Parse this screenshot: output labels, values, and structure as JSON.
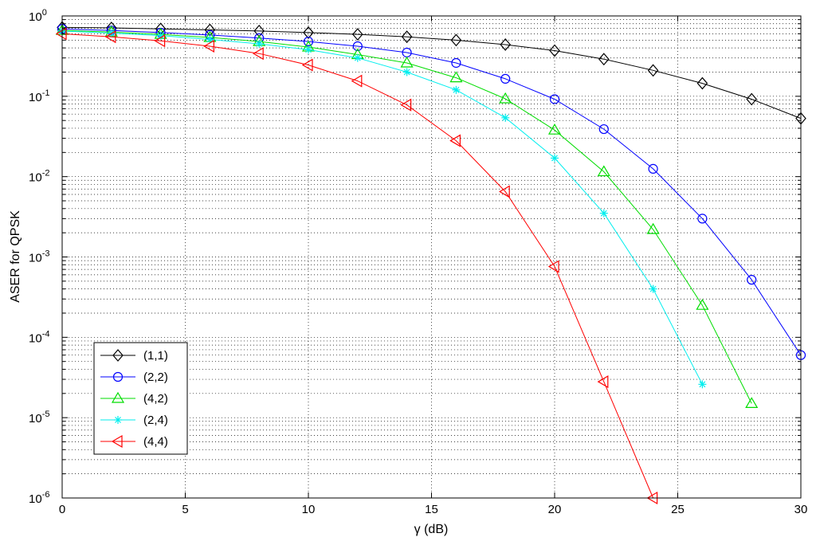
{
  "chart_data": {
    "type": "line",
    "xlabel": "γ (dB)",
    "ylabel": "ASER for QPSK",
    "xlim": [
      0,
      30
    ],
    "ylim": [
      1e-06,
      1
    ],
    "yscale": "log",
    "grid": true,
    "legend_position": "bottom-left",
    "x_ticks": [
      "0",
      "5",
      "10",
      "15",
      "20",
      "25",
      "30"
    ],
    "y_ticks": [
      {
        "base": "10",
        "exp": "0"
      },
      {
        "base": "10",
        "exp": "-1"
      },
      {
        "base": "10",
        "exp": "-2"
      },
      {
        "base": "10",
        "exp": "-3"
      },
      {
        "base": "10",
        "exp": "-4"
      },
      {
        "base": "10",
        "exp": "-5"
      },
      {
        "base": "10",
        "exp": "-6"
      }
    ],
    "series": [
      {
        "name": "(1,1)",
        "color": "#000000",
        "marker": "diamond",
        "x": [
          0,
          2,
          4,
          6,
          8,
          10,
          12,
          14,
          16,
          18,
          20,
          22,
          24,
          26,
          28,
          30
        ],
        "y": [
          0.72,
          0.71,
          0.69,
          0.67,
          0.65,
          0.62,
          0.59,
          0.55,
          0.5,
          0.44,
          0.37,
          0.29,
          0.21,
          0.145,
          0.092,
          0.053
        ]
      },
      {
        "name": "(2,2)",
        "color": "#0000ff",
        "marker": "circle",
        "x": [
          0,
          2,
          4,
          6,
          8,
          10,
          12,
          14,
          16,
          18,
          20,
          22,
          24,
          26,
          28,
          30
        ],
        "y": [
          0.69,
          0.66,
          0.62,
          0.58,
          0.53,
          0.48,
          0.42,
          0.35,
          0.26,
          0.165,
          0.092,
          0.039,
          0.0125,
          0.003,
          0.00052,
          6e-05
        ]
      },
      {
        "name": "(4,2)",
        "color": "#00dd00",
        "marker": "triangle-up",
        "x": [
          0,
          2,
          4,
          6,
          8,
          10,
          12,
          14,
          16,
          18,
          20,
          22,
          24,
          26,
          28
        ],
        "y": [
          0.66,
          0.63,
          0.59,
          0.54,
          0.48,
          0.41,
          0.33,
          0.26,
          0.17,
          0.093,
          0.038,
          0.0115,
          0.0022,
          0.00025,
          1.5e-05
        ]
      },
      {
        "name": "(2,4)",
        "color": "#00eeee",
        "marker": "asterisk",
        "x": [
          0,
          2,
          4,
          6,
          8,
          10,
          12,
          14,
          16,
          18,
          20,
          22,
          24,
          26
        ],
        "y": [
          0.65,
          0.61,
          0.57,
          0.51,
          0.45,
          0.38,
          0.3,
          0.2,
          0.12,
          0.054,
          0.017,
          0.0035,
          0.0004,
          2.6e-05
        ]
      },
      {
        "name": "(4,4)",
        "color": "#ff0000",
        "marker": "triangle-left",
        "x": [
          0,
          2,
          4,
          6,
          8,
          10,
          12,
          14,
          16,
          18,
          20,
          22,
          24
        ],
        "y": [
          0.6,
          0.55,
          0.49,
          0.42,
          0.34,
          0.245,
          0.155,
          0.078,
          0.028,
          0.0065,
          0.00076,
          2.8e-05,
          1e-06
        ]
      }
    ]
  }
}
